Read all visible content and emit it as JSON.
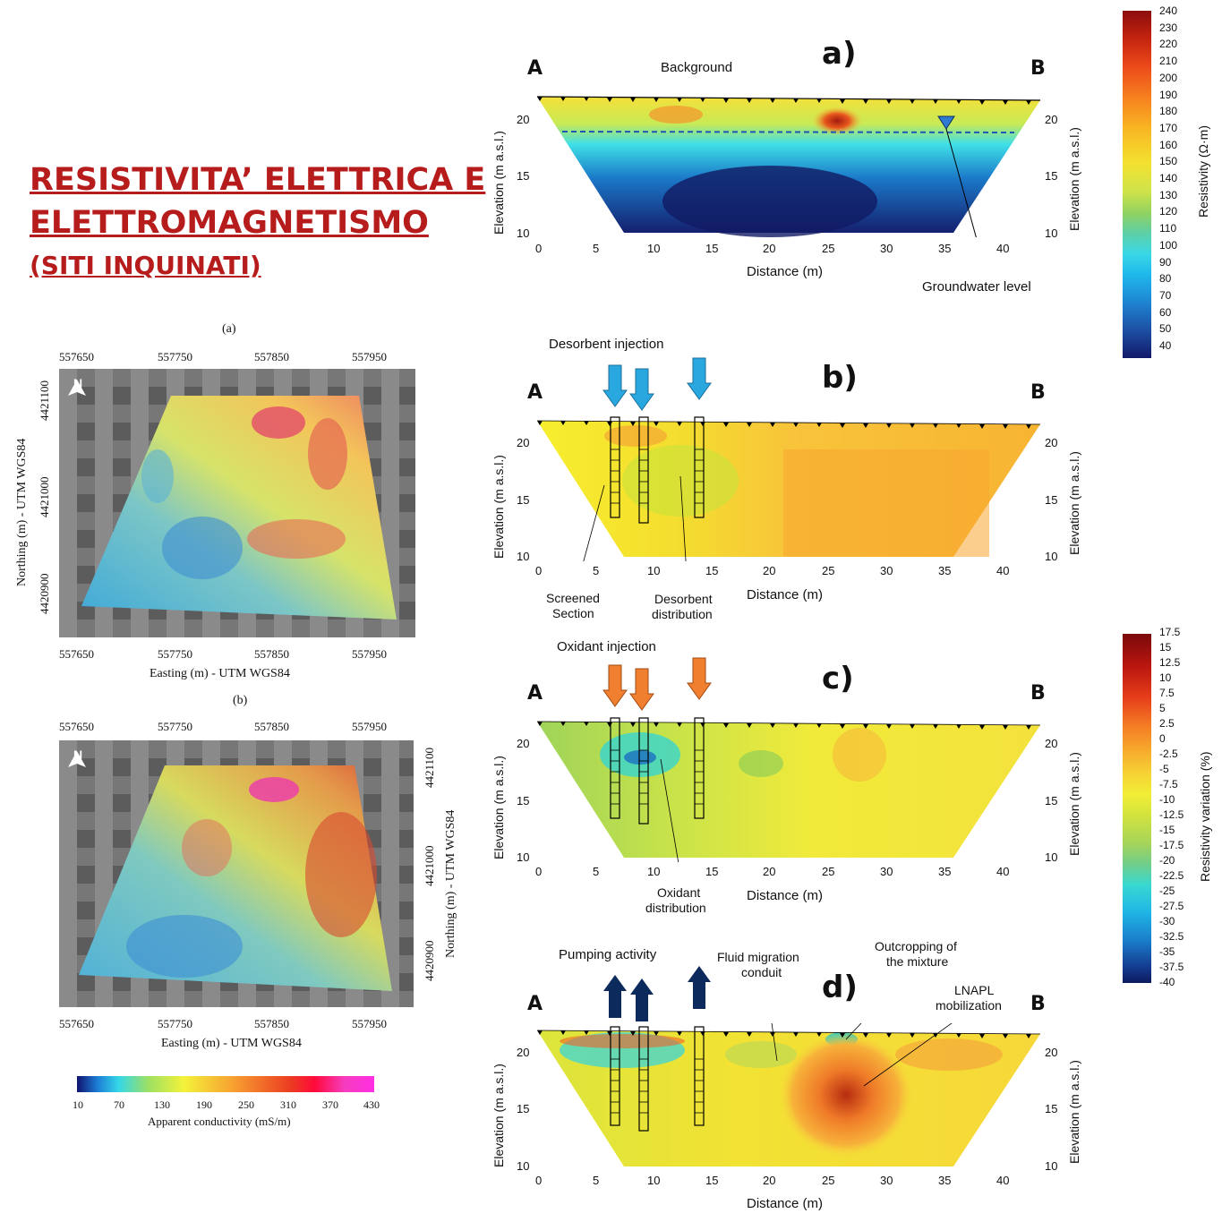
{
  "page_title": {
    "line1": "RESISTIVITA’ ELETTRICA E",
    "line2": "ELETTROMAGNETISMO",
    "line3": "(SITI INQUINATI)"
  },
  "emi_maps": {
    "a_label": "(a)",
    "b_label": "(b)",
    "easting_ticks": [
      "557650",
      "557750",
      "557850",
      "557950"
    ],
    "northing_ticks": [
      "4421100",
      "4421000",
      "4420900"
    ],
    "xlabel": "Easting (m) - UTM WGS84",
    "ylabel": "Northing (m) - UTM WGS84",
    "north": "N",
    "colorbar_ticks": [
      "10",
      "70",
      "130",
      "190",
      "250",
      "310",
      "370",
      "430"
    ],
    "colorbar_label": "Apparent conductivity (mS/m)"
  },
  "sections": {
    "panel_a": {
      "letter": "a)",
      "A": "A",
      "B": "B",
      "caption": "Background",
      "annotation": "Groundwater level"
    },
    "panel_b": {
      "letter": "b)",
      "A": "A",
      "B": "B",
      "caption": "Desorbent injection",
      "ann1": "Screened\nSection",
      "ann1a": "Screened",
      "ann1b": "Section",
      "ann2a": "Desorbent",
      "ann2b": "distribution"
    },
    "panel_c": {
      "letter": "c)",
      "A": "A",
      "B": "B",
      "caption": "Oxidant injection",
      "ann1a": "Oxidant",
      "ann1b": "distribution"
    },
    "panel_d": {
      "letter": "d)",
      "A": "A",
      "B": "B",
      "caption": "Pumping activity",
      "ann1a": "Fluid migration",
      "ann1b": "conduit",
      "ann2a": "Outcropping of",
      "ann2b": "the mixture",
      "ann3a": "LNAPL",
      "ann3b": "mobilization"
    },
    "x_ticks": [
      "0",
      "5",
      "10",
      "15",
      "20",
      "25",
      "30",
      "35",
      "40"
    ],
    "y_ticks": [
      "20",
      "15",
      "10"
    ],
    "xlabel": "Distance (m)",
    "ylabel": "Elevation (m a.s.l.)"
  },
  "colorbar_resistivity": {
    "label": "Resistivity (Ω·m)",
    "ticks": [
      "240",
      "230",
      "220",
      "210",
      "200",
      "190",
      "180",
      "170",
      "160",
      "150",
      "140",
      "130",
      "120",
      "110",
      "100",
      "90",
      "80",
      "70",
      "60",
      "50",
      "40"
    ]
  },
  "colorbar_variation": {
    "label": "Resistivity variation (%)",
    "ticks": [
      "17.5",
      "15",
      "12.5",
      "10",
      "7.5",
      "5",
      "2.5",
      "0",
      "-2.5",
      "-5",
      "-7.5",
      "-10",
      "-12.5",
      "-15",
      "-17.5",
      "-20",
      "-22.5",
      "-25",
      "-27.5",
      "-30",
      "-32.5",
      "-35",
      "-37.5",
      "-40"
    ]
  },
  "colors": {
    "title_red": "#b71c1c",
    "injection_blue": "#29a8e0",
    "injection_orange": "#f08030",
    "pumping_navy": "#0d2a5c"
  }
}
